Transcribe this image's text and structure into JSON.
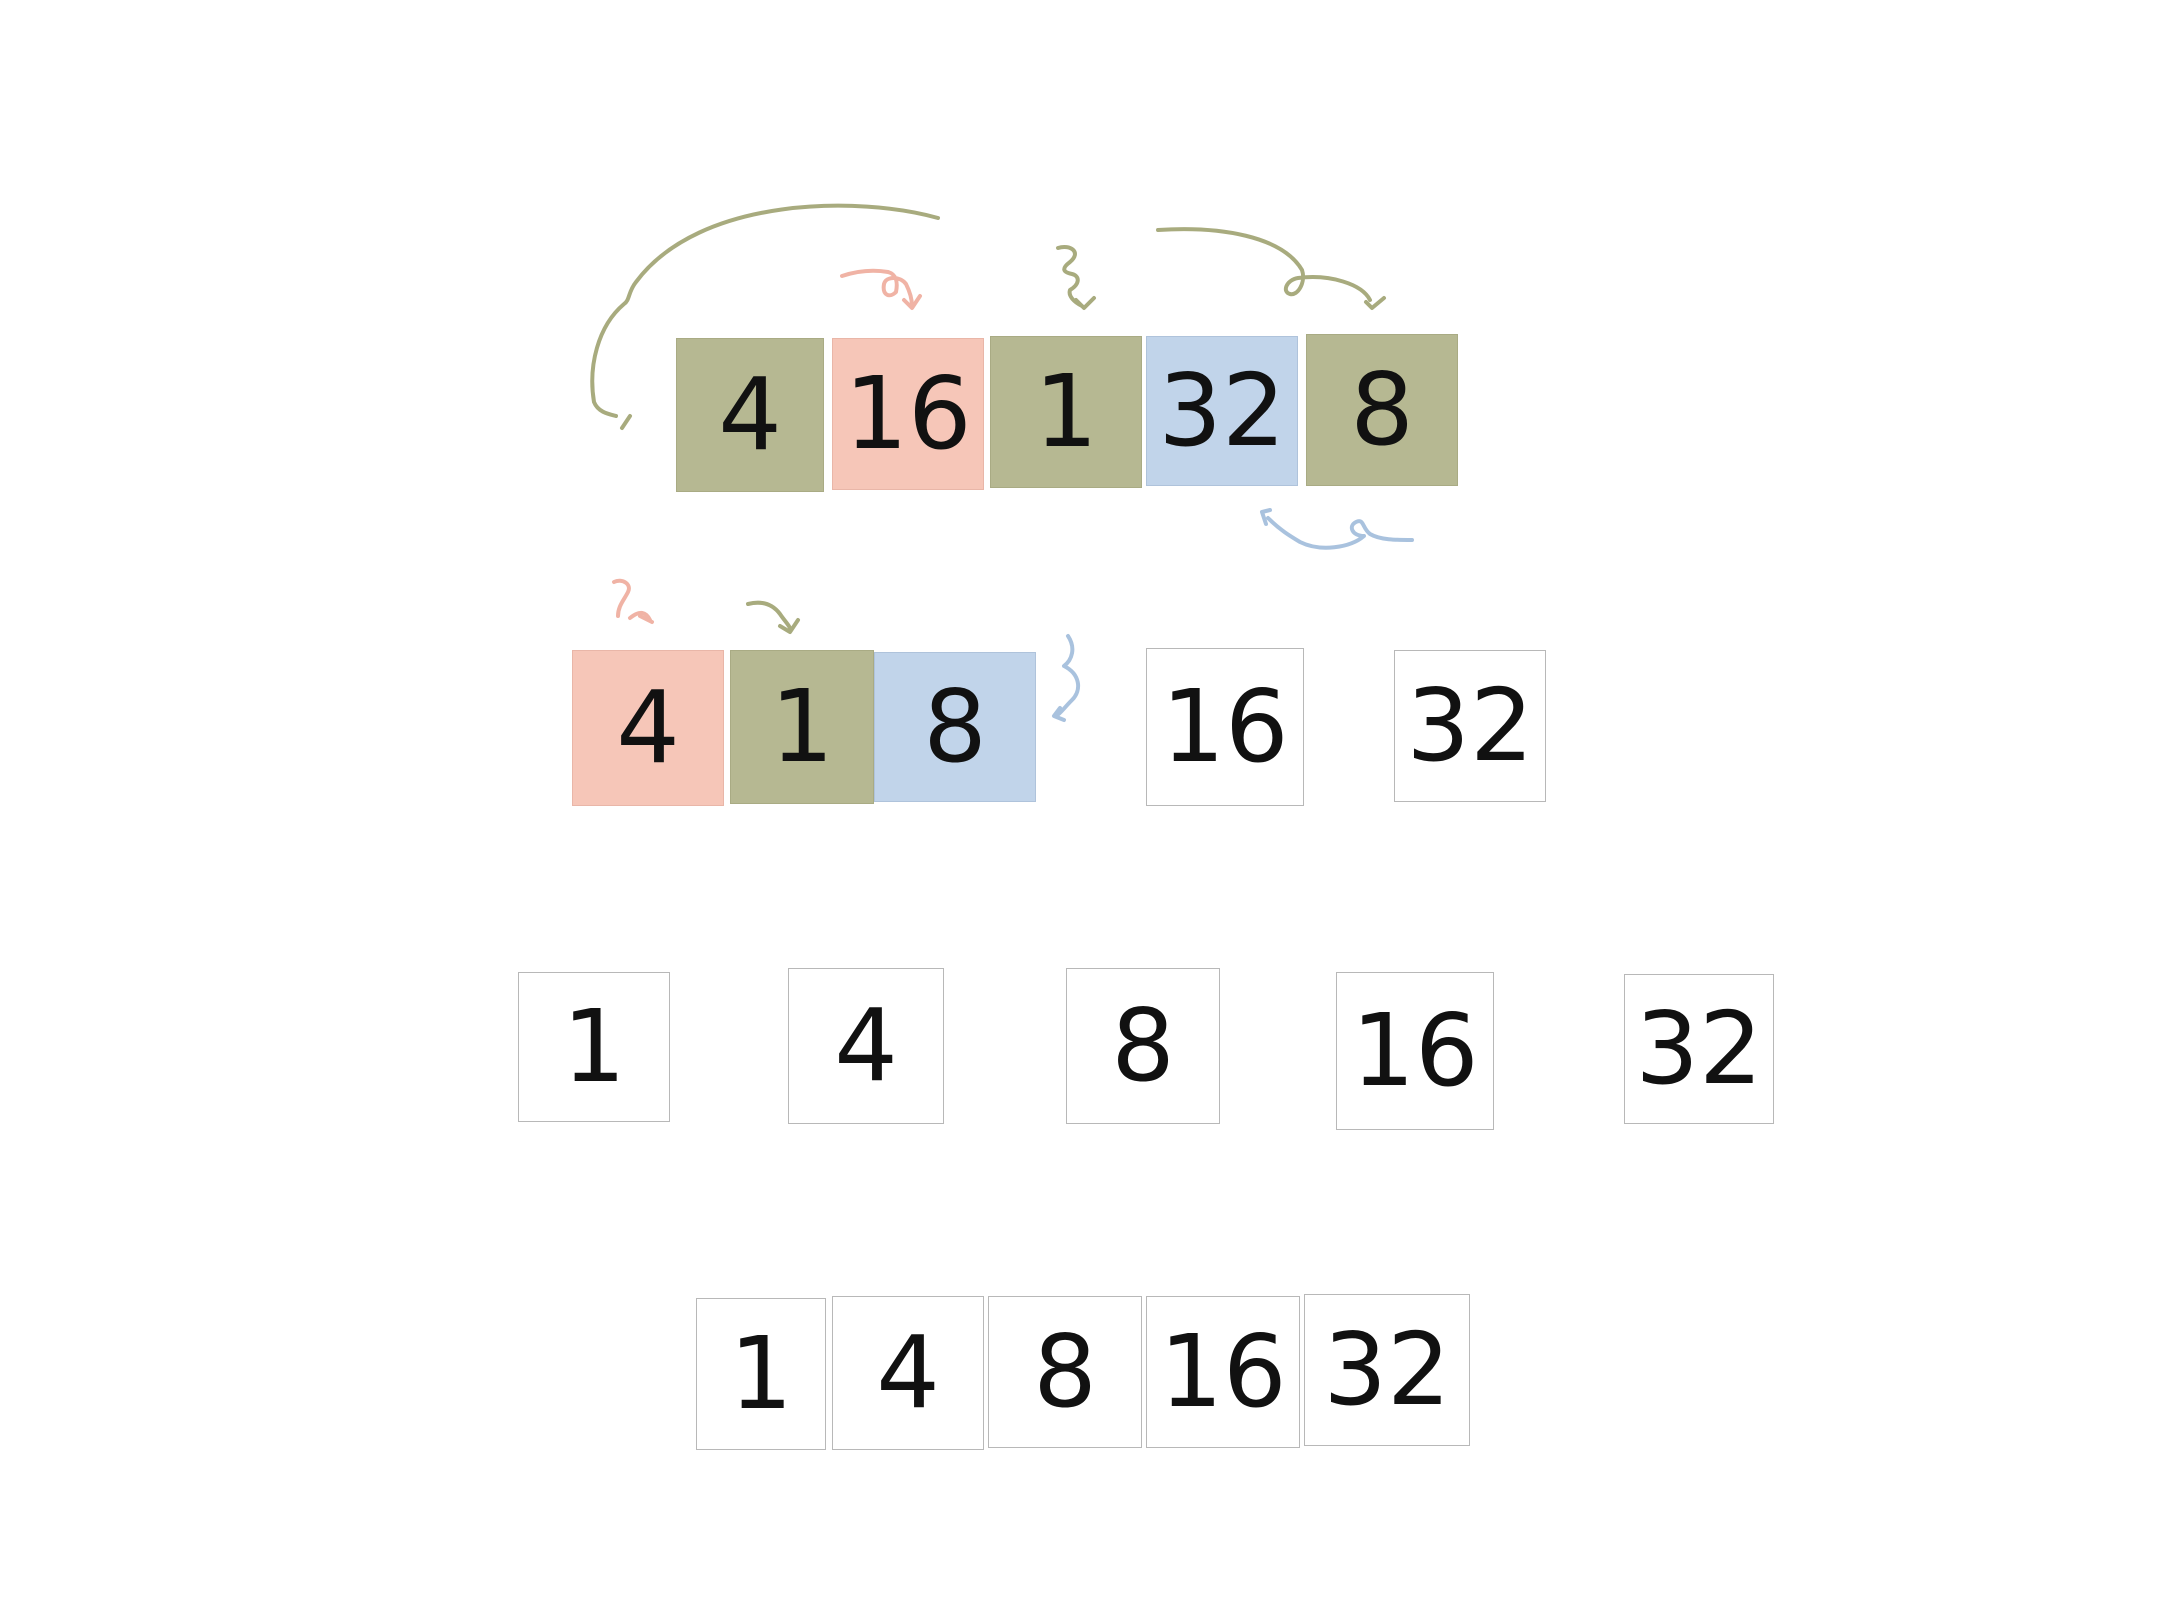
{
  "colors": {
    "olive": "#b6b892",
    "pink": "#f6c6b8",
    "blue": "#c1d4ea",
    "white": "#ffffff",
    "arrow_olive": "#a8ab7e",
    "arrow_pink": "#f0b3a5",
    "arrow_blue": "#a9c2de"
  },
  "rows": [
    {
      "name": "row-input",
      "cells": [
        {
          "value": "4",
          "color": "olive"
        },
        {
          "value": "16",
          "color": "pink"
        },
        {
          "value": "1",
          "color": "olive"
        },
        {
          "value": "32",
          "color": "blue"
        },
        {
          "value": "8",
          "color": "olive"
        }
      ]
    },
    {
      "name": "row-partitioned",
      "cells": [
        {
          "value": "4",
          "color": "pink"
        },
        {
          "value": "1",
          "color": "olive"
        },
        {
          "value": "8",
          "color": "blue"
        },
        {
          "value": "16",
          "color": "white"
        },
        {
          "value": "32",
          "color": "white"
        }
      ]
    },
    {
      "name": "row-separated",
      "cells": [
        {
          "value": "1",
          "color": "white"
        },
        {
          "value": "4",
          "color": "white"
        },
        {
          "value": "8",
          "color": "white"
        },
        {
          "value": "16",
          "color": "white"
        },
        {
          "value": "32",
          "color": "white"
        }
      ]
    },
    {
      "name": "row-merged",
      "cells": [
        {
          "value": "1",
          "color": "white"
        },
        {
          "value": "4",
          "color": "white"
        },
        {
          "value": "8",
          "color": "white"
        },
        {
          "value": "16",
          "color": "white"
        },
        {
          "value": "32",
          "color": "white"
        }
      ]
    }
  ]
}
